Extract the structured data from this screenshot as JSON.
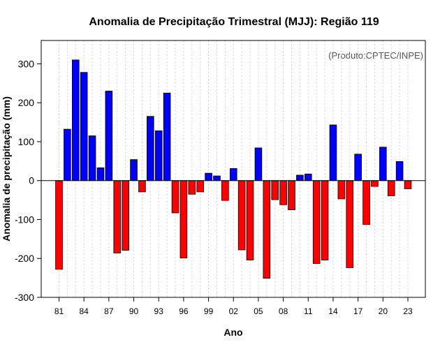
{
  "chart_data": {
    "type": "bar",
    "title": "Anomalia de Precipitação Trimestral (MJJ): Região 119",
    "xlabel": "Ano",
    "ylabel": "Anomalia de precipitação (mm)",
    "annotation": "(Produto:CPTEC/INPE)",
    "ylim": [
      -300,
      360
    ],
    "yticks": [
      -300,
      -200,
      -100,
      0,
      100,
      200,
      300
    ],
    "years": [
      1981,
      1982,
      1983,
      1984,
      1985,
      1986,
      1987,
      1988,
      1989,
      1990,
      1991,
      1992,
      1993,
      1994,
      1995,
      1996,
      1997,
      1998,
      1999,
      2000,
      2001,
      2002,
      2003,
      2004,
      2005,
      2006,
      2007,
      2008,
      2009,
      2010,
      2011,
      2012,
      2013,
      2014,
      2015,
      2016,
      2017,
      2018,
      2019,
      2020,
      2021,
      2022,
      2023
    ],
    "values": [
      -228,
      132,
      310,
      278,
      115,
      33,
      230,
      -186,
      -179,
      54,
      -29,
      165,
      128,
      225,
      -83,
      -199,
      -35,
      -29,
      19,
      12,
      -51,
      31,
      -178,
      -204,
      84,
      -251,
      -49,
      -62,
      -75,
      14,
      17,
      -213,
      -204,
      143,
      -47,
      -224,
      68,
      -113,
      -15,
      86,
      -39,
      49,
      -21
    ],
    "xtick_labels": [
      "81",
      "84",
      "87",
      "90",
      "93",
      "96",
      "99",
      "02",
      "05",
      "08",
      "11",
      "14",
      "17",
      "20",
      "23"
    ],
    "xtick_years": [
      1981,
      1984,
      1987,
      1990,
      1993,
      1996,
      1999,
      2002,
      2005,
      2008,
      2011,
      2014,
      2017,
      2020,
      2023
    ],
    "colors": {
      "positive": "#0000ff",
      "negative": "#ff0000"
    }
  }
}
